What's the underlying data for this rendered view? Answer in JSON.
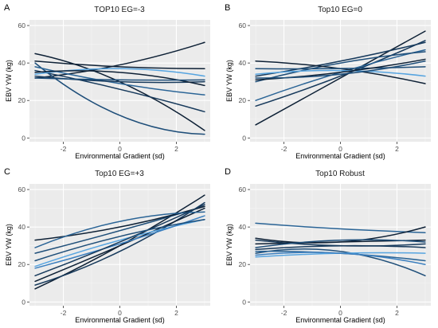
{
  "colors": {
    "panel_bg": "#EBEBEB",
    "grid_major": "#FFFFFF",
    "grid_minor": "#F5F5F5",
    "series": [
      "#0D2035",
      "#173A5C",
      "#1E4E79",
      "#2A6496",
      "#3B7FBF",
      "#56A4E0"
    ]
  },
  "chart_data": [
    {
      "type": "line",
      "panel_letter": "A",
      "title": "TOP10 EG=-3",
      "xlabel": "Environmental Gradient (sd)",
      "ylabel": "EBV YW (kg)",
      "xlim": [
        -3.2,
        3.2
      ],
      "ylim": [
        -2,
        63
      ],
      "xticks": [
        -2,
        0,
        2
      ],
      "xtick_labels": [
        "-2",
        "0",
        "2"
      ],
      "yticks": [
        0,
        20,
        40,
        60
      ],
      "ytick_labels": [
        "0",
        "20",
        "40",
        "60"
      ],
      "x": [
        -3,
        0,
        3
      ],
      "series": [
        {
          "values": [
            32,
            39,
            51
          ],
          "color": 0
        },
        {
          "values": [
            45,
            30,
            4
          ],
          "color": 0
        },
        {
          "values": [
            40,
            12,
            2
          ],
          "color": 2
        },
        {
          "values": [
            36,
            26,
            14
          ],
          "color": 1
        },
        {
          "values": [
            38,
            29,
            23
          ],
          "color": 3
        },
        {
          "values": [
            41,
            38,
            37
          ],
          "color": 0
        },
        {
          "values": [
            34,
            37,
            33
          ],
          "color": 5
        },
        {
          "values": [
            33,
            30,
            30
          ],
          "color": 1
        },
        {
          "values": [
            35,
            35,
            28
          ],
          "color": 0
        },
        {
          "values": [
            32,
            31,
            31
          ],
          "color": 2
        }
      ]
    },
    {
      "type": "line",
      "panel_letter": "B",
      "title": "Top10 EG=0",
      "xlabel": "Environmental Gradient (sd)",
      "ylabel": "EBV YW (kg)",
      "xlim": [
        -3.2,
        3.2
      ],
      "ylim": [
        -2,
        63
      ],
      "xticks": [
        -2,
        0,
        2
      ],
      "xtick_labels": [
        "-2",
        "0",
        "2"
      ],
      "yticks": [
        0,
        20,
        40,
        60
      ],
      "ytick_labels": [
        "0",
        "20",
        "40",
        "60"
      ],
      "x": [
        -3,
        0,
        3
      ],
      "series": [
        {
          "values": [
            7,
            32,
            57
          ],
          "color": 0
        },
        {
          "values": [
            17,
            33,
            52
          ],
          "color": 1
        },
        {
          "values": [
            20,
            35,
            47
          ],
          "color": 3
        },
        {
          "values": [
            30,
            40,
            46
          ],
          "color": 2
        },
        {
          "values": [
            33,
            41,
            51
          ],
          "color": 1
        },
        {
          "values": [
            41,
            37,
            29
          ],
          "color": 0
        },
        {
          "values": [
            37,
            37,
            38
          ],
          "color": 2
        },
        {
          "values": [
            34,
            36,
            33
          ],
          "color": 5
        },
        {
          "values": [
            31,
            35,
            42
          ],
          "color": 0
        },
        {
          "values": [
            32,
            34,
            41
          ],
          "color": 2
        }
      ]
    },
    {
      "type": "line",
      "panel_letter": "C",
      "title": "Top10 EG=+3",
      "xlabel": "Environmental Gradient (sd)",
      "ylabel": "EBV YW (kg)",
      "xlim": [
        -3.2,
        3.2
      ],
      "ylim": [
        -2,
        63
      ],
      "xticks": [
        -2,
        0,
        2
      ],
      "xtick_labels": [
        "-2",
        "0",
        "2"
      ],
      "yticks": [
        0,
        20,
        40,
        60
      ],
      "ytick_labels": [
        "0",
        "20",
        "40",
        "60"
      ],
      "x": [
        -3,
        0,
        3
      ],
      "series": [
        {
          "values": [
            7,
            30,
            57
          ],
          "color": 0
        },
        {
          "values": [
            9,
            27,
            53
          ],
          "color": 1
        },
        {
          "values": [
            11,
            30,
            50
          ],
          "color": 0
        },
        {
          "values": [
            19,
            33,
            44
          ],
          "color": 5
        },
        {
          "values": [
            18,
            31,
            46
          ],
          "color": 4
        },
        {
          "values": [
            26,
            38,
            51
          ],
          "color": 2
        },
        {
          "values": [
            33,
            40,
            51
          ],
          "color": 0
        },
        {
          "values": [
            29,
            43,
            48
          ],
          "color": 3
        },
        {
          "values": [
            14,
            32,
            52
          ],
          "color": 1
        },
        {
          "values": [
            22,
            35,
            44
          ],
          "color": 2
        }
      ]
    },
    {
      "type": "line",
      "panel_letter": "D",
      "title": "Top10 Robust",
      "xlabel": "Environmental Gradient (sd)",
      "ylabel": "EBV YW (kg)",
      "xlim": [
        -3.2,
        3.2
      ],
      "ylim": [
        -2,
        63
      ],
      "xticks": [
        -2,
        0,
        2
      ],
      "xtick_labels": [
        "-2",
        "0",
        "2"
      ],
      "yticks": [
        0,
        20,
        40,
        60
      ],
      "ytick_labels": [
        "0",
        "20",
        "40",
        "60"
      ],
      "x": [
        -3,
        0,
        3
      ],
      "series": [
        {
          "values": [
            42,
            39,
            37
          ],
          "color": 3
        },
        {
          "values": [
            34,
            32,
            40
          ],
          "color": 0
        },
        {
          "values": [
            33,
            30,
            31
          ],
          "color": 1
        },
        {
          "values": [
            31,
            32,
            33
          ],
          "color": 0
        },
        {
          "values": [
            29,
            33,
            32
          ],
          "color": 2
        },
        {
          "values": [
            28,
            30,
            29
          ],
          "color": 1
        },
        {
          "values": [
            26,
            27,
            14
          ],
          "color": 2
        },
        {
          "values": [
            27,
            26,
            22
          ],
          "color": 3
        },
        {
          "values": [
            24,
            26,
            26
          ],
          "color": 5
        },
        {
          "values": [
            25,
            26,
            20
          ],
          "color": 4
        }
      ]
    }
  ]
}
